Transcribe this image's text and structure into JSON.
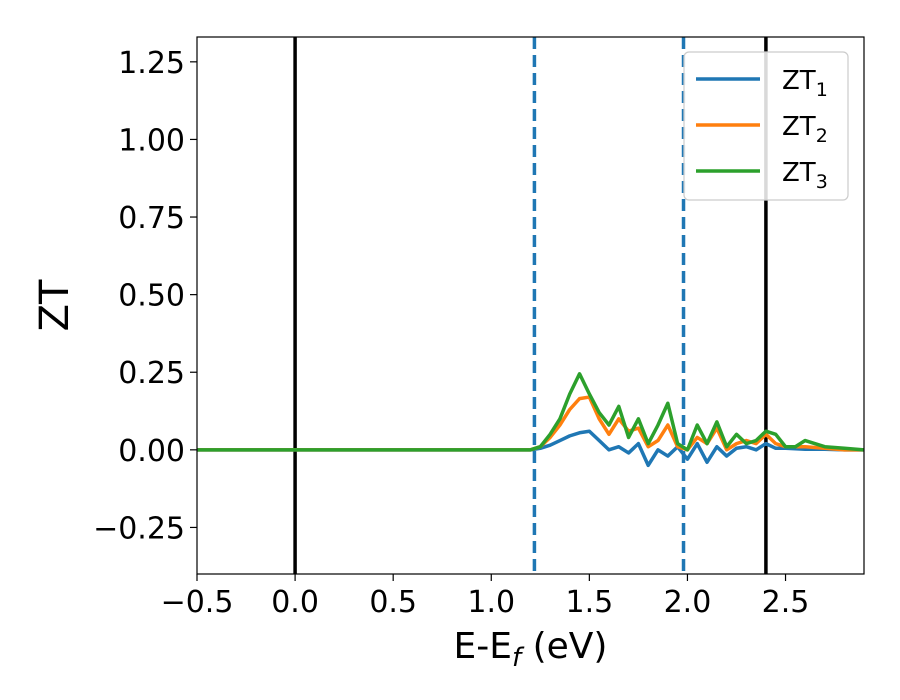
{
  "chart_data": {
    "type": "line",
    "xlabel": "E-E",
    "xlabel_sub": "f",
    "xlabel_unit": " (eV)",
    "ylabel": "ZT",
    "xlim": [
      -0.5,
      2.9
    ],
    "ylim": [
      -0.4,
      1.33
    ],
    "xticks": [
      -0.5,
      0.0,
      0.5,
      1.0,
      1.5,
      2.0,
      2.5
    ],
    "xtick_labels": [
      "−0.5",
      "0.0",
      "0.5",
      "1.0",
      "1.5",
      "2.0",
      "2.5"
    ],
    "yticks": [
      -0.25,
      0.0,
      0.25,
      0.5,
      0.75,
      1.0,
      1.25
    ],
    "ytick_labels": [
      "−0.25",
      "0.00",
      "0.25",
      "0.50",
      "0.75",
      "1.00",
      "1.25"
    ],
    "grid": false,
    "legend_position": "top-right",
    "vlines": [
      {
        "x": 0.0,
        "style": "solid",
        "color": "#000000"
      },
      {
        "x": 2.4,
        "style": "solid",
        "color": "#000000"
      },
      {
        "x": 1.22,
        "style": "dashed",
        "color": "#1f77b4"
      },
      {
        "x": 1.98,
        "style": "dashed",
        "color": "#1f77b4"
      }
    ],
    "series": [
      {
        "name": "ZT",
        "sub": "1",
        "color": "#1f77b4",
        "x": [
          -0.5,
          1.1,
          1.2,
          1.25,
          1.3,
          1.35,
          1.4,
          1.45,
          1.5,
          1.55,
          1.6,
          1.65,
          1.7,
          1.75,
          1.8,
          1.85,
          1.9,
          1.95,
          2.0,
          2.05,
          2.1,
          2.15,
          2.2,
          2.25,
          2.3,
          2.35,
          2.4,
          2.45,
          2.5,
          2.6,
          2.7,
          2.8,
          2.9
        ],
        "y": [
          0.0,
          0.0,
          0.0,
          0.005,
          0.015,
          0.03,
          0.045,
          0.055,
          0.06,
          0.03,
          0.0,
          0.01,
          -0.01,
          0.02,
          -0.05,
          0.0,
          -0.02,
          0.01,
          -0.03,
          0.02,
          -0.04,
          0.01,
          -0.02,
          0.005,
          0.01,
          0.0,
          0.02,
          0.005,
          0.005,
          0.002,
          0.002,
          0.0,
          0.0
        ]
      },
      {
        "name": "ZT",
        "sub": "2",
        "color": "#ff7f0e",
        "x": [
          -0.5,
          1.1,
          1.2,
          1.25,
          1.3,
          1.35,
          1.4,
          1.45,
          1.5,
          1.55,
          1.6,
          1.65,
          1.7,
          1.75,
          1.8,
          1.85,
          1.9,
          1.95,
          2.0,
          2.05,
          2.1,
          2.15,
          2.2,
          2.25,
          2.3,
          2.35,
          2.4,
          2.45,
          2.5,
          2.6,
          2.7,
          2.8,
          2.9
        ],
        "y": [
          0.0,
          0.0,
          0.0,
          0.01,
          0.04,
          0.08,
          0.13,
          0.165,
          0.17,
          0.1,
          0.05,
          0.1,
          0.06,
          0.07,
          0.01,
          0.03,
          0.08,
          0.01,
          0.0,
          0.04,
          0.02,
          0.07,
          0.0,
          0.02,
          0.03,
          0.02,
          0.05,
          0.02,
          0.01,
          0.01,
          0.005,
          0.0,
          0.0
        ]
      },
      {
        "name": "ZT",
        "sub": "3",
        "color": "#2ca02c",
        "x": [
          -0.5,
          1.1,
          1.2,
          1.25,
          1.3,
          1.35,
          1.4,
          1.45,
          1.5,
          1.55,
          1.6,
          1.65,
          1.7,
          1.75,
          1.8,
          1.85,
          1.9,
          1.95,
          2.0,
          2.05,
          2.1,
          2.15,
          2.2,
          2.25,
          2.3,
          2.35,
          2.4,
          2.45,
          2.5,
          2.55,
          2.6,
          2.7,
          2.8,
          2.9
        ],
        "y": [
          0.0,
          0.0,
          0.0,
          0.01,
          0.05,
          0.1,
          0.18,
          0.245,
          0.18,
          0.12,
          0.08,
          0.14,
          0.04,
          0.1,
          0.02,
          0.08,
          0.15,
          0.02,
          0.0,
          0.08,
          0.02,
          0.09,
          0.01,
          0.05,
          0.02,
          0.03,
          0.06,
          0.05,
          0.01,
          0.01,
          0.03,
          0.01,
          0.005,
          0.0
        ]
      }
    ]
  }
}
